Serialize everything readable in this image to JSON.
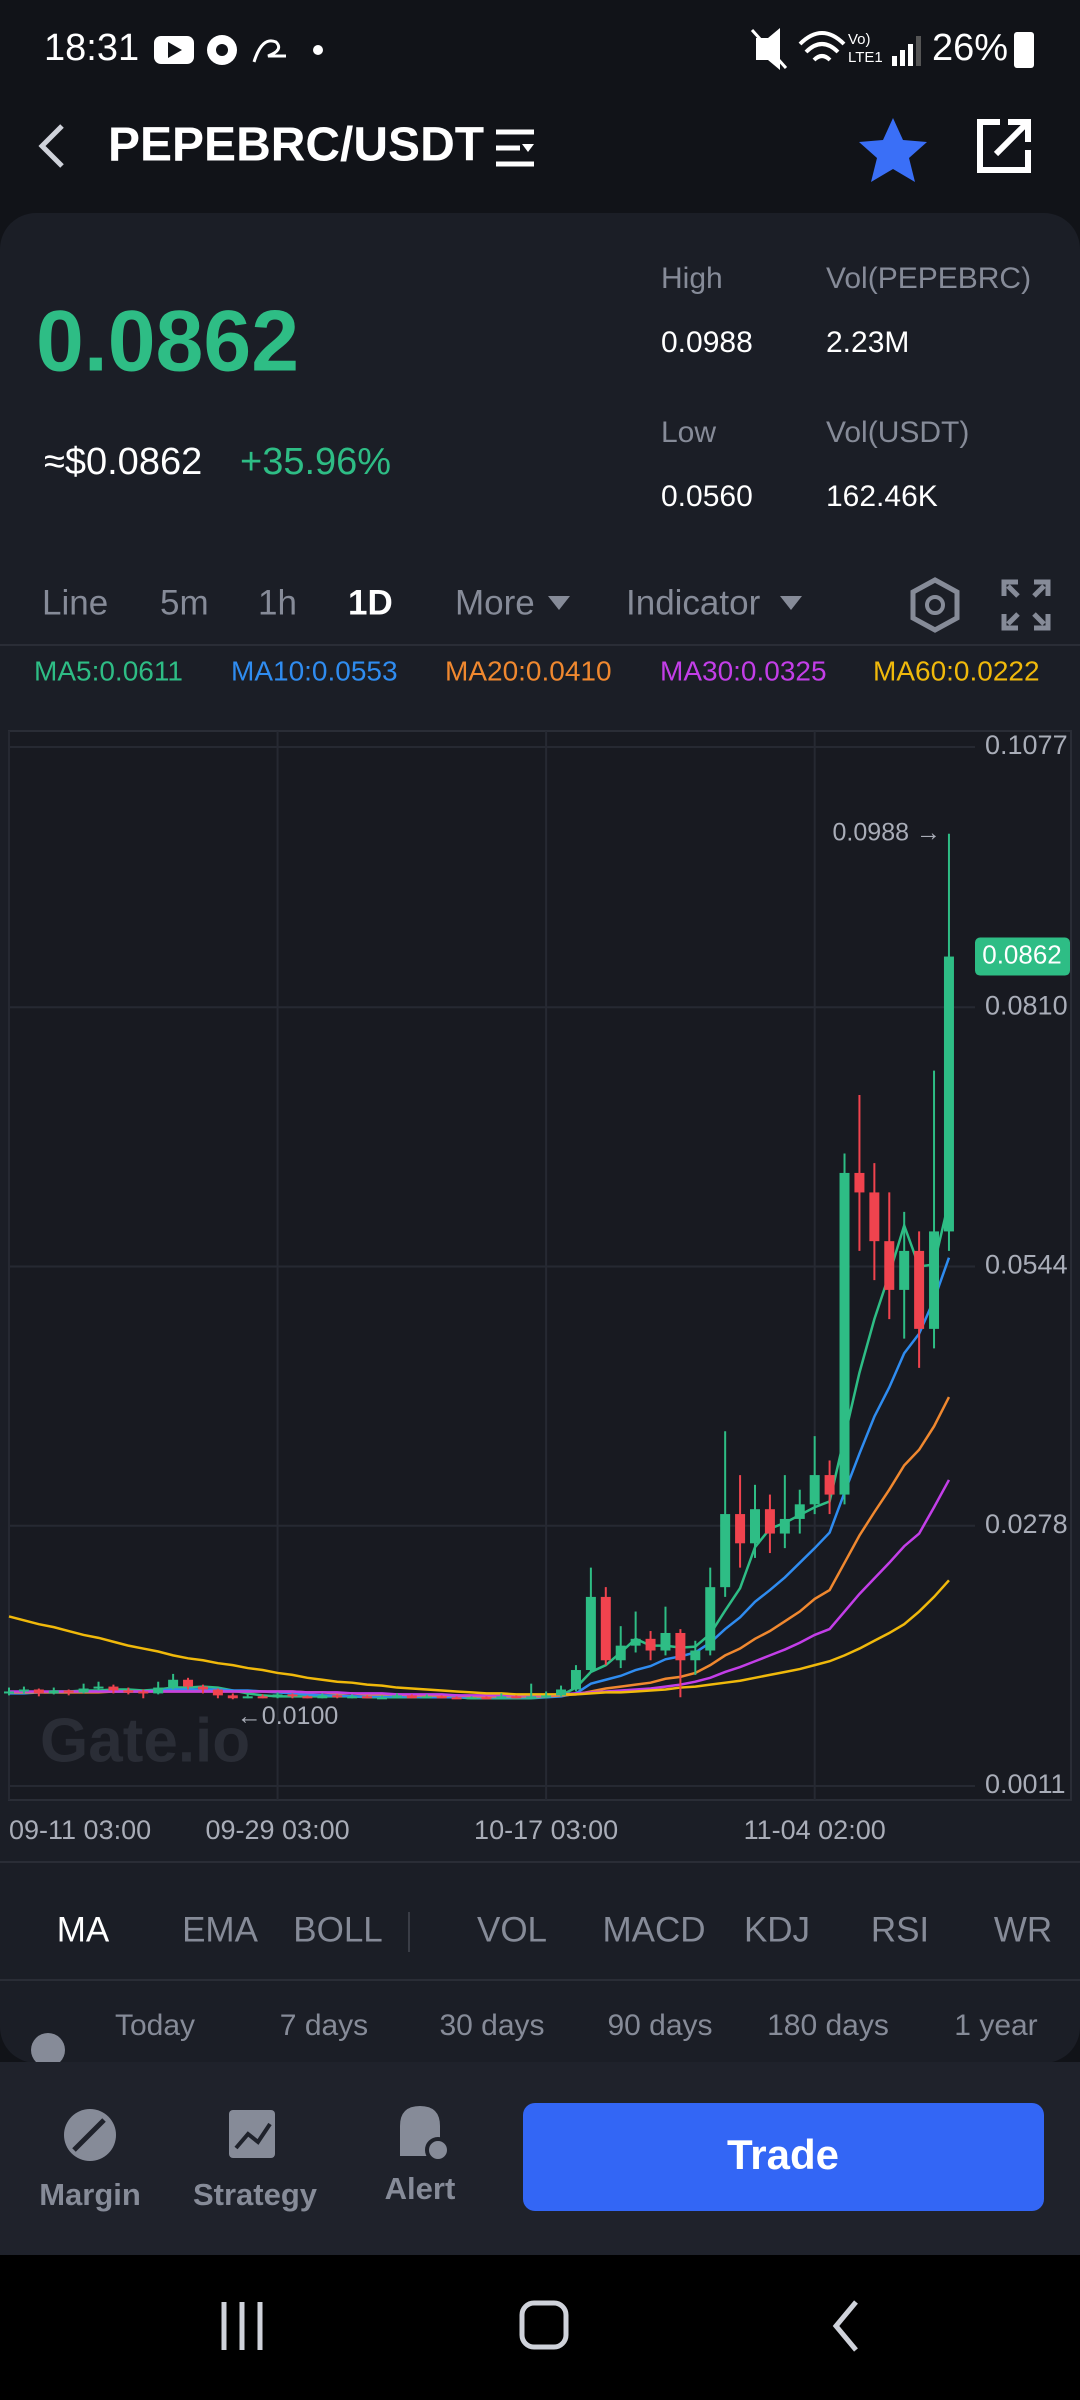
{
  "status_bar": {
    "time": "18:31",
    "battery": "26%"
  },
  "header": {
    "title": "PEPEBRC/USDT"
  },
  "ticker": {
    "price": "0.0862",
    "usd_price": "≈$0.0862",
    "change": "+35.96%",
    "stats": [
      {
        "label": "High",
        "value": "0.0988"
      },
      {
        "label": "Vol(PEPEBRC)",
        "value": "2.23M"
      },
      {
        "label": "Low",
        "value": "0.0560"
      },
      {
        "label": "Vol(USDT)",
        "value": "162.46K"
      }
    ]
  },
  "interval_tabs": [
    "Line",
    "5m",
    "1h",
    "1D",
    "More",
    "Indicator"
  ],
  "indicator_tabs": [
    "MA",
    "EMA",
    "BOLL",
    "VOL",
    "MACD",
    "KDJ",
    "RSI",
    "WR"
  ],
  "periods": [
    "Today",
    "7 days",
    "30 days",
    "90 days",
    "180 days",
    "1 year"
  ],
  "bottom_bar": {
    "margin": "Margin",
    "strategy": "Strategy",
    "alert": "Alert",
    "trade": "Trade"
  },
  "chart_data": {
    "type": "candlestick",
    "watermark": "Gate.io",
    "up_color": "#2ebd85",
    "down_color": "#f0434e",
    "grid": true,
    "ylim": [
      0.0011,
      0.1077
    ],
    "yticks": [
      0.1077,
      {
        "value": 0.081,
        "label": "0.0810"
      },
      0.0544,
      0.0278,
      0.0011
    ],
    "categories": [
      "09-11 03:00",
      null,
      null,
      null,
      null,
      null,
      null,
      null,
      null,
      null,
      null,
      null,
      null,
      null,
      null,
      null,
      null,
      null,
      "09-29 03:00",
      null,
      null,
      null,
      null,
      null,
      null,
      null,
      null,
      null,
      null,
      null,
      null,
      null,
      null,
      null,
      null,
      null,
      "10-17 03:00",
      null,
      null,
      null,
      null,
      null,
      null,
      null,
      null,
      null,
      null,
      null,
      null,
      null,
      null,
      null,
      null,
      null,
      "11-04 02:00",
      null,
      null,
      null,
      null,
      null,
      null,
      null,
      null,
      null
    ],
    "candles": [
      [
        0.0106,
        0.0112,
        0.0104,
        0.0108
      ],
      [
        0.0108,
        0.0113,
        0.0106,
        0.011
      ],
      [
        0.011,
        0.0111,
        0.0103,
        0.0106
      ],
      [
        0.0106,
        0.0112,
        0.0105,
        0.0109
      ],
      [
        0.0109,
        0.011,
        0.0104,
        0.0107
      ],
      [
        0.0107,
        0.0116,
        0.0106,
        0.0111
      ],
      [
        0.0111,
        0.0118,
        0.0109,
        0.0113
      ],
      [
        0.0113,
        0.0115,
        0.0106,
        0.0109
      ],
      [
        0.0109,
        0.0112,
        0.0105,
        0.0108
      ],
      [
        0.0108,
        0.011,
        0.0101,
        0.0106
      ],
      [
        0.0106,
        0.0118,
        0.0105,
        0.0112
      ],
      [
        0.0112,
        0.0126,
        0.011,
        0.012
      ],
      [
        0.012,
        0.0122,
        0.011,
        0.0113
      ],
      [
        0.0113,
        0.0115,
        0.0106,
        0.011
      ],
      [
        0.011,
        0.0111,
        0.0101,
        0.0104
      ],
      [
        0.0104,
        0.0106,
        0.01,
        0.0101
      ],
      [
        0.0101,
        0.0106,
        0.0101,
        0.0103
      ],
      [
        0.0103,
        0.0105,
        0.0101,
        0.0102
      ],
      [
        0.0102,
        0.0107,
        0.0101,
        0.0105
      ],
      [
        0.0105,
        0.0106,
        0.0101,
        0.0103
      ],
      [
        0.0103,
        0.0104,
        0.0101,
        0.0101
      ],
      [
        0.0101,
        0.0106,
        0.0101,
        0.0104
      ],
      [
        0.0104,
        0.0105,
        0.0101,
        0.0102
      ],
      [
        0.0102,
        0.0105,
        0.0101,
        0.0103
      ],
      [
        0.0103,
        0.0104,
        0.0101,
        0.0101
      ],
      [
        0.0101,
        0.0104,
        0.0101,
        0.0102
      ],
      [
        0.0102,
        0.0106,
        0.0101,
        0.0104
      ],
      [
        0.0104,
        0.0105,
        0.0101,
        0.0101
      ],
      [
        0.0101,
        0.0105,
        0.0101,
        0.0103
      ],
      [
        0.0103,
        0.0104,
        0.0101,
        0.0102
      ],
      [
        0.0102,
        0.0103,
        0.0101,
        0.0101
      ],
      [
        0.0101,
        0.0103,
        0.0101,
        0.0102
      ],
      [
        0.0102,
        0.0103,
        0.0101,
        0.0101
      ],
      [
        0.0101,
        0.0106,
        0.0101,
        0.0103
      ],
      [
        0.0103,
        0.0104,
        0.0101,
        0.0102
      ],
      [
        0.0102,
        0.0116,
        0.0101,
        0.0103
      ],
      [
        0.0103,
        0.0108,
        0.0101,
        0.0104
      ],
      [
        0.0104,
        0.0114,
        0.0103,
        0.011
      ],
      [
        0.011,
        0.0135,
        0.0108,
        0.013
      ],
      [
        0.013,
        0.0235,
        0.0128,
        0.0205
      ],
      [
        0.0205,
        0.0215,
        0.0135,
        0.014
      ],
      [
        0.014,
        0.0175,
        0.0132,
        0.0155
      ],
      [
        0.0155,
        0.019,
        0.0148,
        0.0162
      ],
      [
        0.0162,
        0.017,
        0.014,
        0.015
      ],
      [
        0.015,
        0.0195,
        0.0145,
        0.0168
      ],
      [
        0.0168,
        0.0172,
        0.0102,
        0.014
      ],
      [
        0.014,
        0.016,
        0.0125,
        0.015
      ],
      [
        0.015,
        0.0235,
        0.0145,
        0.0215
      ],
      [
        0.0215,
        0.0375,
        0.0205,
        0.029
      ],
      [
        0.029,
        0.033,
        0.0235,
        0.026
      ],
      [
        0.026,
        0.032,
        0.0245,
        0.0295
      ],
      [
        0.0295,
        0.031,
        0.025,
        0.027
      ],
      [
        0.027,
        0.033,
        0.0255,
        0.0285
      ],
      [
        0.0285,
        0.0315,
        0.027,
        0.03
      ],
      [
        0.03,
        0.037,
        0.029,
        0.033
      ],
      [
        0.033,
        0.0345,
        0.029,
        0.031
      ],
      [
        0.031,
        0.066,
        0.03,
        0.064
      ],
      [
        0.064,
        0.072,
        0.056,
        0.062
      ],
      [
        0.062,
        0.065,
        0.053,
        0.057
      ],
      [
        0.057,
        0.062,
        0.049,
        0.052
      ],
      [
        0.052,
        0.06,
        0.047,
        0.056
      ],
      [
        0.056,
        0.058,
        0.044,
        0.048
      ],
      [
        0.048,
        0.0745,
        0.046,
        0.058
      ],
      [
        0.058,
        0.0988,
        0.056,
        0.0862
      ]
    ],
    "lines": [
      {
        "name": "MA5:0.0611",
        "color": "#2ebd85",
        "values": [
          0.0107,
          0.0107,
          0.0107,
          0.0108,
          0.0108,
          0.0109,
          0.0109,
          0.011,
          0.011,
          0.0109,
          0.011,
          0.0112,
          0.0112,
          0.0113,
          0.0112,
          0.0109,
          0.0106,
          0.0104,
          0.0103,
          0.0103,
          0.0103,
          0.0103,
          0.0103,
          0.0103,
          0.0102,
          0.0102,
          0.0102,
          0.0102,
          0.0102,
          0.0102,
          0.0102,
          0.0101,
          0.0101,
          0.0101,
          0.0101,
          0.0101,
          0.0102,
          0.0104,
          0.0112,
          0.0128,
          0.0135,
          0.0148,
          0.0162,
          0.0155,
          0.0155,
          0.0153,
          0.0154,
          0.0167,
          0.0191,
          0.0214,
          0.0256,
          0.0275,
          0.0281,
          0.0289,
          0.0297,
          0.0303,
          0.0369,
          0.0435,
          0.049,
          0.0536,
          0.0586,
          0.0544,
          0.0546,
          0.0611
        ]
      },
      {
        "name": "MA10:0.0553",
        "color": "#2f8cf0",
        "values": [
          0.0106,
          0.0106,
          0.0107,
          0.0107,
          0.0107,
          0.0108,
          0.0108,
          0.0108,
          0.0108,
          0.0108,
          0.0109,
          0.011,
          0.011,
          0.011,
          0.011,
          0.0109,
          0.0109,
          0.0108,
          0.0107,
          0.0106,
          0.0105,
          0.0104,
          0.0104,
          0.0103,
          0.0103,
          0.0103,
          0.0103,
          0.0103,
          0.0102,
          0.0102,
          0.0102,
          0.0102,
          0.0102,
          0.0102,
          0.0102,
          0.0102,
          0.0102,
          0.0103,
          0.0106,
          0.0116,
          0.012,
          0.0124,
          0.013,
          0.0134,
          0.0141,
          0.0144,
          0.0148,
          0.0158,
          0.0172,
          0.0184,
          0.02,
          0.0212,
          0.0225,
          0.024,
          0.0255,
          0.0271,
          0.0312,
          0.0352,
          0.039,
          0.042,
          0.0455,
          0.0475,
          0.051,
          0.0553
        ]
      },
      {
        "name": "MA20:0.0410",
        "color": "#f0882f",
        "values": [
          0.0107,
          0.0107,
          0.0107,
          0.0107,
          0.0107,
          0.0107,
          0.0107,
          0.0108,
          0.0108,
          0.0108,
          0.0108,
          0.0108,
          0.0108,
          0.0108,
          0.0108,
          0.0108,
          0.0108,
          0.0108,
          0.0108,
          0.0108,
          0.0107,
          0.0107,
          0.0106,
          0.0106,
          0.0105,
          0.0105,
          0.0105,
          0.0104,
          0.0104,
          0.0104,
          0.0104,
          0.0103,
          0.0103,
          0.0103,
          0.0103,
          0.0103,
          0.0103,
          0.0104,
          0.0105,
          0.0108,
          0.0111,
          0.0113,
          0.0115,
          0.0117,
          0.0121,
          0.0123,
          0.0127,
          0.0135,
          0.0145,
          0.0152,
          0.0162,
          0.017,
          0.018,
          0.019,
          0.0203,
          0.0212,
          0.024,
          0.0268,
          0.0292,
          0.0315,
          0.034,
          0.0356,
          0.038,
          0.041
        ]
      },
      {
        "name": "MA30:0.0325",
        "color": "#c33ee8",
        "values": [
          0.0108,
          0.0108,
          0.0108,
          0.0108,
          0.0108,
          0.0108,
          0.0108,
          0.0108,
          0.0108,
          0.0108,
          0.0108,
          0.0108,
          0.0108,
          0.0108,
          0.0108,
          0.0108,
          0.0108,
          0.0108,
          0.0108,
          0.0108,
          0.0107,
          0.0107,
          0.0107,
          0.0106,
          0.0106,
          0.0106,
          0.0105,
          0.0105,
          0.0105,
          0.0105,
          0.0104,
          0.0104,
          0.0104,
          0.0104,
          0.0104,
          0.0104,
          0.0104,
          0.0105,
          0.0106,
          0.0107,
          0.0108,
          0.0109,
          0.011,
          0.0111,
          0.0113,
          0.0115,
          0.0118,
          0.0122,
          0.0128,
          0.0133,
          0.0139,
          0.0145,
          0.0151,
          0.0158,
          0.0166,
          0.0172,
          0.019,
          0.0208,
          0.0224,
          0.024,
          0.0257,
          0.027,
          0.0297,
          0.0325
        ]
      },
      {
        "name": "MA60:0.0222",
        "color": "#f0b90b",
        "values": [
          0.0185,
          0.0181,
          0.0177,
          0.0174,
          0.017,
          0.0166,
          0.0163,
          0.0159,
          0.0155,
          0.0152,
          0.0149,
          0.0145,
          0.0142,
          0.014,
          0.0137,
          0.0135,
          0.0132,
          0.013,
          0.0127,
          0.0125,
          0.0122,
          0.012,
          0.0118,
          0.0117,
          0.0115,
          0.0114,
          0.0112,
          0.0111,
          0.011,
          0.0109,
          0.0108,
          0.0107,
          0.0106,
          0.0106,
          0.0105,
          0.0105,
          0.0105,
          0.0105,
          0.0105,
          0.0106,
          0.0107,
          0.0107,
          0.0108,
          0.0109,
          0.011,
          0.0112,
          0.0113,
          0.0115,
          0.0117,
          0.0119,
          0.0122,
          0.0125,
          0.0128,
          0.0131,
          0.0135,
          0.0139,
          0.0145,
          0.0152,
          0.016,
          0.0168,
          0.0177,
          0.019,
          0.0205,
          0.0222
        ]
      }
    ],
    "high_label": {
      "value": 0.0988,
      "label": "0.0988 →"
    },
    "low_label": {
      "value": 0.01,
      "label": "←0.0100"
    },
    "last_price": {
      "value": 0.0862,
      "label": "0.0862"
    }
  }
}
